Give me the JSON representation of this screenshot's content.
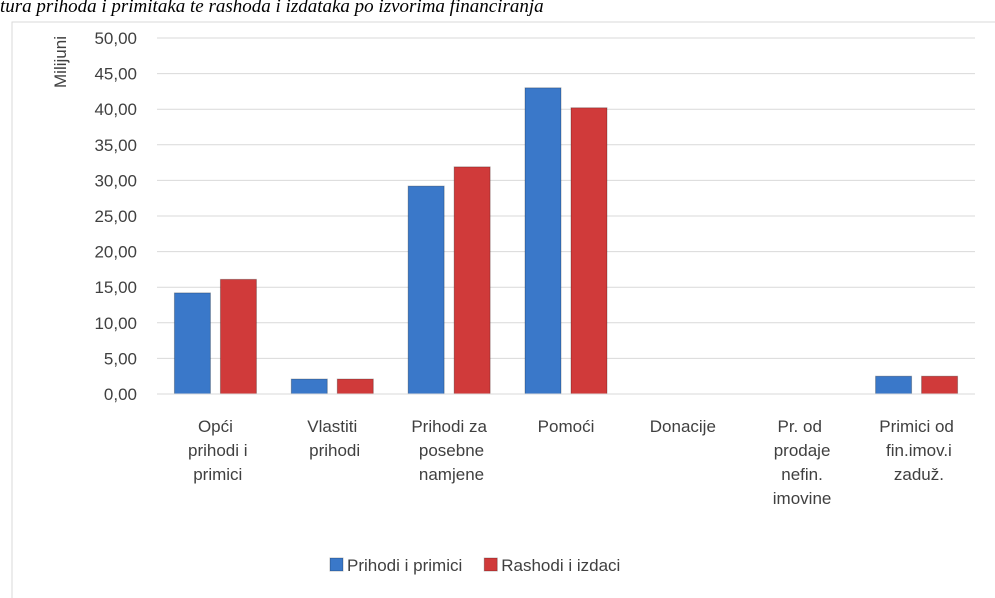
{
  "chart_data": {
    "type": "bar",
    "title": "tura prihoda i primitaka te rashoda i izdataka po izvorima financiranja",
    "y_label": "Milijuni",
    "categories": [
      "Opći prihodi i primici",
      "Vlastiti prihodi",
      "Prihodi za posebne namjene",
      "Pomoći",
      "Donacije",
      "Pr. od prodaje nefin. imovine",
      "Primici od fin.imov.i zaduž."
    ],
    "series": [
      {
        "name": "Prihodi i primici",
        "color": "#3a78c9",
        "values": [
          14.2,
          2.1,
          29.2,
          43.0,
          0,
          0,
          2.5
        ]
      },
      {
        "name": "Rashodi i izdaci",
        "color": "#d03a3a",
        "values": [
          16.1,
          2.1,
          31.9,
          40.2,
          0,
          0,
          2.5
        ]
      }
    ],
    "ylim": [
      0,
      50
    ],
    "yticks": [
      {
        "value": 0,
        "label": "0,00"
      },
      {
        "value": 5,
        "label": "5,00"
      },
      {
        "value": 10,
        "label": "10,00"
      },
      {
        "value": 15,
        "label": "15,00"
      },
      {
        "value": 20,
        "label": "20,00"
      },
      {
        "value": 25,
        "label": "25,00"
      },
      {
        "value": 30,
        "label": "30,00"
      },
      {
        "value": 35,
        "label": "35,00"
      },
      {
        "value": 40,
        "label": "40,00"
      },
      {
        "value": 45,
        "label": "45,00"
      },
      {
        "value": 50,
        "label": "50,00"
      }
    ],
    "grid": true,
    "legend": "bottom"
  }
}
